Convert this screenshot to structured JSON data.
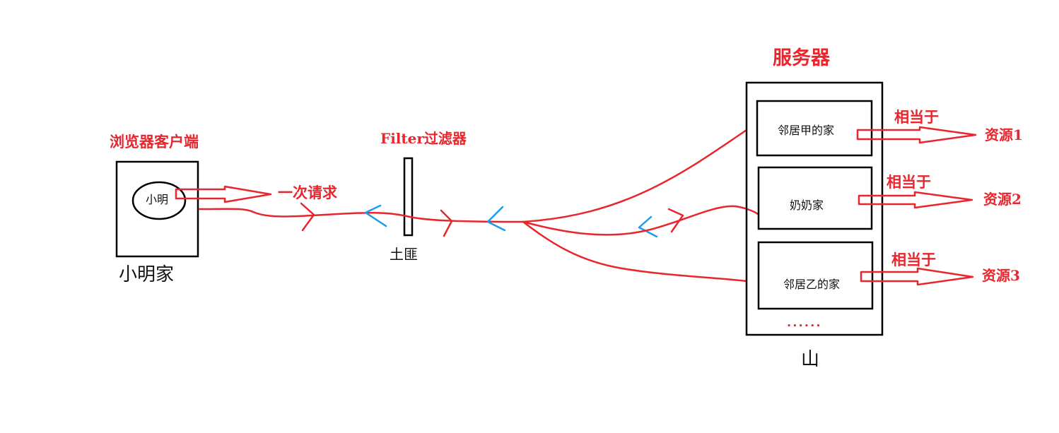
{
  "colors": {
    "red": "#e8262d",
    "blue": "#1e9ce8",
    "black": "#000000"
  },
  "client": {
    "label": "浏览器客户端",
    "person": "小明",
    "house": "小明家"
  },
  "request_label": "一次请求",
  "filter": {
    "label": "Filter过滤器",
    "name": "土匪"
  },
  "server": {
    "label": "服务器",
    "mountain": "山",
    "houses": [
      {
        "name": "邻居甲的家",
        "equals": "相当于",
        "resource": "资源1"
      },
      {
        "name": "奶奶家",
        "equals": "相当于",
        "resource": "资源2"
      },
      {
        "name": "邻居乙的家",
        "equals": "相当于",
        "resource": "资源3"
      }
    ],
    "more": "......"
  }
}
